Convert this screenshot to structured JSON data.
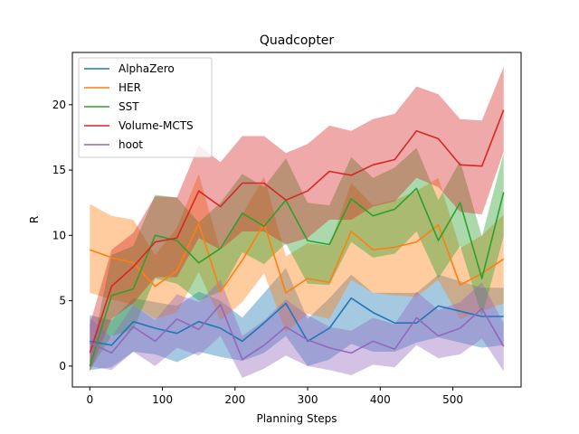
{
  "chart_data": {
    "type": "line",
    "title": "Quadcopter",
    "xlabel": "Planning Steps",
    "ylabel": "R",
    "xlim": [
      -24,
      594
    ],
    "ylim": [
      -1.6,
      24.0
    ],
    "xticks": [
      0,
      100,
      200,
      300,
      400,
      500
    ],
    "yticks": [
      0,
      5,
      10,
      15,
      20
    ],
    "grid": false,
    "legend_placement": "top-left",
    "x": [
      0,
      30,
      60,
      90,
      120,
      150,
      180,
      210,
      240,
      270,
      300,
      330,
      360,
      390,
      420,
      450,
      480,
      510,
      540,
      570
    ],
    "series": [
      {
        "name": "AlphaZero",
        "color": "#1f77b4",
        "values": [
          1.9,
          1.6,
          3.4,
          2.9,
          2.5,
          3.4,
          2.9,
          1.9,
          3.3,
          4.8,
          1.9,
          2.9,
          5.2,
          4.1,
          3.3,
          3.3,
          4.6,
          4.2,
          3.8,
          3.8
        ],
        "lower": [
          -0.3,
          -0.1,
          1.1,
          0.9,
          0.3,
          1.1,
          0.7,
          0.4,
          1.0,
          2.3,
          0.0,
          0.5,
          1.7,
          1.1,
          1.1,
          1.8,
          2.2,
          1.8,
          1.4,
          1.6
        ],
        "upper": [
          3.9,
          3.5,
          5.2,
          4.9,
          4.6,
          5.7,
          5.0,
          3.7,
          5.6,
          7.5,
          3.6,
          5.2,
          7.0,
          5.6,
          5.6,
          5.6,
          7.0,
          6.5,
          6.0,
          6.0
        ]
      },
      {
        "name": "HER",
        "color": "#ff7f0e",
        "values": [
          8.9,
          8.3,
          7.9,
          6.1,
          7.3,
          10.9,
          5.7,
          8.1,
          10.9,
          5.6,
          6.7,
          6.4,
          10.3,
          8.9,
          9.1,
          9.5,
          10.8,
          6.2,
          7.1,
          8.2
        ],
        "lower": [
          5.6,
          5.1,
          4.7,
          3.6,
          4.1,
          7.2,
          3.5,
          4.9,
          7.1,
          2.6,
          4.0,
          3.6,
          6.6,
          5.6,
          5.4,
          5.3,
          6.6,
          3.6,
          4.2,
          4.8
        ],
        "upper": [
          12.4,
          11.5,
          11.2,
          8.5,
          10.6,
          14.7,
          8.8,
          11.6,
          14.5,
          8.4,
          9.4,
          9.2,
          14.0,
          12.3,
          12.7,
          13.4,
          14.4,
          9.0,
          10.0,
          11.6
        ]
      },
      {
        "name": "SST",
        "color": "#2ca02c",
        "values": [
          0.0,
          5.4,
          5.9,
          10.0,
          9.6,
          7.9,
          9.0,
          11.7,
          10.7,
          12.7,
          9.6,
          9.3,
          12.8,
          11.5,
          12.0,
          13.6,
          9.6,
          12.5,
          6.7,
          13.3
        ],
        "lower": [
          -0.3,
          2.3,
          2.8,
          6.7,
          6.3,
          5.0,
          5.7,
          8.7,
          7.8,
          9.4,
          6.3,
          6.2,
          9.5,
          8.3,
          8.6,
          10.3,
          6.7,
          9.2,
          3.8,
          9.9
        ],
        "upper": [
          0.4,
          8.5,
          9.2,
          13.1,
          12.9,
          11.0,
          12.5,
          14.7,
          13.7,
          15.9,
          12.5,
          12.3,
          16.0,
          14.4,
          15.2,
          16.7,
          12.7,
          15.7,
          9.9,
          16.3
        ]
      },
      {
        "name": "Volume-MCTS",
        "color": "#d62728",
        "values": [
          1.0,
          6.1,
          7.6,
          9.5,
          9.8,
          13.4,
          12.2,
          14.0,
          14.0,
          12.7,
          13.4,
          14.9,
          14.6,
          15.4,
          15.8,
          18.0,
          17.4,
          15.4,
          15.3,
          19.6
        ],
        "lower": [
          -0.4,
          3.6,
          4.8,
          6.8,
          6.8,
          9.8,
          8.9,
          10.3,
          10.3,
          9.3,
          9.8,
          11.2,
          11.2,
          12.2,
          12.6,
          14.4,
          13.7,
          11.8,
          11.6,
          16.4
        ],
        "upper": [
          3.2,
          8.9,
          10.2,
          13.0,
          12.9,
          16.9,
          15.6,
          17.6,
          17.6,
          16.3,
          17.0,
          18.4,
          18.0,
          18.9,
          19.3,
          21.4,
          20.8,
          18.9,
          18.8,
          22.9
        ]
      },
      {
        "name": "hoot",
        "color": "#9467bd",
        "values": [
          1.8,
          1.0,
          3.0,
          1.9,
          3.6,
          2.8,
          4.7,
          0.5,
          1.6,
          3.0,
          2.0,
          1.4,
          1.0,
          1.9,
          1.3,
          3.7,
          2.3,
          2.9,
          4.4,
          1.5
        ],
        "lower": [
          0.0,
          -0.3,
          1.1,
          0.0,
          1.4,
          0.8,
          2.3,
          -0.9,
          -0.2,
          0.8,
          0.0,
          -0.3,
          -0.7,
          0.1,
          -0.1,
          1.6,
          0.6,
          0.9,
          2.1,
          -0.4
        ],
        "upper": [
          3.7,
          2.2,
          4.7,
          3.5,
          5.5,
          4.9,
          6.6,
          2.3,
          3.5,
          5.1,
          3.9,
          3.0,
          2.7,
          3.7,
          3.2,
          5.7,
          4.3,
          4.9,
          6.4,
          3.3
        ]
      }
    ]
  }
}
